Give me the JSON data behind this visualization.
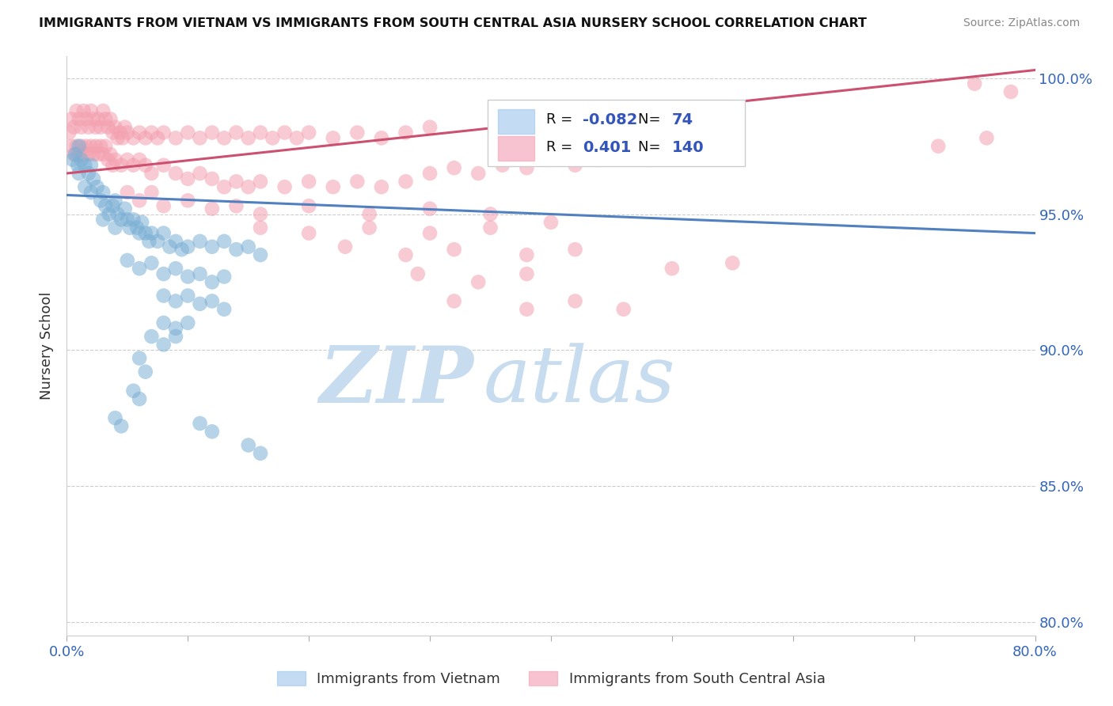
{
  "title": "IMMIGRANTS FROM VIETNAM VS IMMIGRANTS FROM SOUTH CENTRAL ASIA NURSERY SCHOOL CORRELATION CHART",
  "source": "Source: ZipAtlas.com",
  "ylabel": "Nursery School",
  "xmin": 0.0,
  "xmax": 0.8,
  "ymin": 0.795,
  "ymax": 1.008,
  "r_vietnam": -0.082,
  "n_vietnam": 74,
  "r_sca": 0.401,
  "n_sca": 140,
  "color_vietnam": "#7BAFD4",
  "color_sca": "#F4A0B0",
  "line_vietnam": "#5080C0",
  "line_sca": "#CC5070",
  "watermark_zip": "ZIP",
  "watermark_atlas": "atlas",
  "vietnam_points": [
    [
      0.005,
      0.97
    ],
    [
      0.007,
      0.972
    ],
    [
      0.009,
      0.968
    ],
    [
      0.01,
      0.975
    ],
    [
      0.01,
      0.965
    ],
    [
      0.012,
      0.97
    ],
    [
      0.015,
      0.968
    ],
    [
      0.015,
      0.96
    ],
    [
      0.018,
      0.965
    ],
    [
      0.02,
      0.968
    ],
    [
      0.02,
      0.958
    ],
    [
      0.022,
      0.963
    ],
    [
      0.025,
      0.96
    ],
    [
      0.028,
      0.955
    ],
    [
      0.03,
      0.958
    ],
    [
      0.03,
      0.948
    ],
    [
      0.032,
      0.953
    ],
    [
      0.035,
      0.95
    ],
    [
      0.038,
      0.953
    ],
    [
      0.04,
      0.955
    ],
    [
      0.04,
      0.945
    ],
    [
      0.042,
      0.95
    ],
    [
      0.045,
      0.948
    ],
    [
      0.048,
      0.952
    ],
    [
      0.05,
      0.948
    ],
    [
      0.052,
      0.945
    ],
    [
      0.055,
      0.948
    ],
    [
      0.058,
      0.945
    ],
    [
      0.06,
      0.943
    ],
    [
      0.062,
      0.947
    ],
    [
      0.065,
      0.943
    ],
    [
      0.068,
      0.94
    ],
    [
      0.07,
      0.943
    ],
    [
      0.075,
      0.94
    ],
    [
      0.08,
      0.943
    ],
    [
      0.085,
      0.938
    ],
    [
      0.09,
      0.94
    ],
    [
      0.095,
      0.937
    ],
    [
      0.1,
      0.938
    ],
    [
      0.11,
      0.94
    ],
    [
      0.12,
      0.938
    ],
    [
      0.13,
      0.94
    ],
    [
      0.14,
      0.937
    ],
    [
      0.15,
      0.938
    ],
    [
      0.16,
      0.935
    ],
    [
      0.05,
      0.933
    ],
    [
      0.06,
      0.93
    ],
    [
      0.07,
      0.932
    ],
    [
      0.08,
      0.928
    ],
    [
      0.09,
      0.93
    ],
    [
      0.1,
      0.927
    ],
    [
      0.11,
      0.928
    ],
    [
      0.12,
      0.925
    ],
    [
      0.13,
      0.927
    ],
    [
      0.08,
      0.92
    ],
    [
      0.09,
      0.918
    ],
    [
      0.1,
      0.92
    ],
    [
      0.11,
      0.917
    ],
    [
      0.12,
      0.918
    ],
    [
      0.13,
      0.915
    ],
    [
      0.08,
      0.91
    ],
    [
      0.09,
      0.908
    ],
    [
      0.1,
      0.91
    ],
    [
      0.07,
      0.905
    ],
    [
      0.08,
      0.902
    ],
    [
      0.09,
      0.905
    ],
    [
      0.06,
      0.897
    ],
    [
      0.065,
      0.892
    ],
    [
      0.055,
      0.885
    ],
    [
      0.06,
      0.882
    ],
    [
      0.04,
      0.875
    ],
    [
      0.045,
      0.872
    ],
    [
      0.11,
      0.873
    ],
    [
      0.12,
      0.87
    ],
    [
      0.15,
      0.865
    ],
    [
      0.16,
      0.862
    ]
  ],
  "sca_points": [
    [
      0.002,
      0.98
    ],
    [
      0.004,
      0.985
    ],
    [
      0.006,
      0.982
    ],
    [
      0.008,
      0.988
    ],
    [
      0.01,
      0.985
    ],
    [
      0.012,
      0.982
    ],
    [
      0.014,
      0.988
    ],
    [
      0.016,
      0.985
    ],
    [
      0.018,
      0.982
    ],
    [
      0.02,
      0.988
    ],
    [
      0.022,
      0.985
    ],
    [
      0.024,
      0.982
    ],
    [
      0.026,
      0.985
    ],
    [
      0.028,
      0.982
    ],
    [
      0.03,
      0.988
    ],
    [
      0.032,
      0.985
    ],
    [
      0.034,
      0.982
    ],
    [
      0.036,
      0.985
    ],
    [
      0.038,
      0.98
    ],
    [
      0.04,
      0.982
    ],
    [
      0.042,
      0.978
    ],
    [
      0.044,
      0.98
    ],
    [
      0.046,
      0.978
    ],
    [
      0.048,
      0.982
    ],
    [
      0.05,
      0.98
    ],
    [
      0.055,
      0.978
    ],
    [
      0.06,
      0.98
    ],
    [
      0.065,
      0.978
    ],
    [
      0.07,
      0.98
    ],
    [
      0.075,
      0.978
    ],
    [
      0.08,
      0.98
    ],
    [
      0.09,
      0.978
    ],
    [
      0.1,
      0.98
    ],
    [
      0.11,
      0.978
    ],
    [
      0.12,
      0.98
    ],
    [
      0.13,
      0.978
    ],
    [
      0.14,
      0.98
    ],
    [
      0.15,
      0.978
    ],
    [
      0.16,
      0.98
    ],
    [
      0.17,
      0.978
    ],
    [
      0.18,
      0.98
    ],
    [
      0.19,
      0.978
    ],
    [
      0.2,
      0.98
    ],
    [
      0.22,
      0.978
    ],
    [
      0.24,
      0.98
    ],
    [
      0.26,
      0.978
    ],
    [
      0.28,
      0.98
    ],
    [
      0.3,
      0.982
    ],
    [
      0.004,
      0.975
    ],
    [
      0.006,
      0.972
    ],
    [
      0.008,
      0.975
    ],
    [
      0.01,
      0.972
    ],
    [
      0.012,
      0.975
    ],
    [
      0.014,
      0.972
    ],
    [
      0.016,
      0.975
    ],
    [
      0.018,
      0.972
    ],
    [
      0.02,
      0.975
    ],
    [
      0.022,
      0.972
    ],
    [
      0.024,
      0.975
    ],
    [
      0.026,
      0.972
    ],
    [
      0.028,
      0.975
    ],
    [
      0.03,
      0.972
    ],
    [
      0.032,
      0.975
    ],
    [
      0.034,
      0.97
    ],
    [
      0.036,
      0.972
    ],
    [
      0.038,
      0.968
    ],
    [
      0.04,
      0.97
    ],
    [
      0.045,
      0.968
    ],
    [
      0.05,
      0.97
    ],
    [
      0.055,
      0.968
    ],
    [
      0.06,
      0.97
    ],
    [
      0.065,
      0.968
    ],
    [
      0.07,
      0.965
    ],
    [
      0.08,
      0.968
    ],
    [
      0.09,
      0.965
    ],
    [
      0.1,
      0.963
    ],
    [
      0.11,
      0.965
    ],
    [
      0.12,
      0.963
    ],
    [
      0.13,
      0.96
    ],
    [
      0.14,
      0.962
    ],
    [
      0.15,
      0.96
    ],
    [
      0.16,
      0.962
    ],
    [
      0.18,
      0.96
    ],
    [
      0.2,
      0.962
    ],
    [
      0.22,
      0.96
    ],
    [
      0.24,
      0.962
    ],
    [
      0.26,
      0.96
    ],
    [
      0.28,
      0.962
    ],
    [
      0.3,
      0.965
    ],
    [
      0.32,
      0.967
    ],
    [
      0.34,
      0.965
    ],
    [
      0.36,
      0.968
    ],
    [
      0.38,
      0.967
    ],
    [
      0.4,
      0.97
    ],
    [
      0.42,
      0.968
    ],
    [
      0.44,
      0.97
    ],
    [
      0.46,
      0.972
    ],
    [
      0.48,
      0.97
    ],
    [
      0.5,
      0.972
    ],
    [
      0.05,
      0.958
    ],
    [
      0.06,
      0.955
    ],
    [
      0.07,
      0.958
    ],
    [
      0.08,
      0.953
    ],
    [
      0.1,
      0.955
    ],
    [
      0.12,
      0.952
    ],
    [
      0.14,
      0.953
    ],
    [
      0.16,
      0.95
    ],
    [
      0.2,
      0.953
    ],
    [
      0.25,
      0.95
    ],
    [
      0.3,
      0.952
    ],
    [
      0.35,
      0.95
    ],
    [
      0.16,
      0.945
    ],
    [
      0.2,
      0.943
    ],
    [
      0.25,
      0.945
    ],
    [
      0.3,
      0.943
    ],
    [
      0.35,
      0.945
    ],
    [
      0.4,
      0.947
    ],
    [
      0.23,
      0.938
    ],
    [
      0.28,
      0.935
    ],
    [
      0.32,
      0.937
    ],
    [
      0.38,
      0.935
    ],
    [
      0.42,
      0.937
    ],
    [
      0.29,
      0.928
    ],
    [
      0.34,
      0.925
    ],
    [
      0.38,
      0.928
    ],
    [
      0.5,
      0.93
    ],
    [
      0.55,
      0.932
    ],
    [
      0.32,
      0.918
    ],
    [
      0.38,
      0.915
    ],
    [
      0.42,
      0.918
    ],
    [
      0.46,
      0.915
    ],
    [
      0.75,
      0.998
    ],
    [
      0.78,
      0.995
    ],
    [
      0.72,
      0.975
    ],
    [
      0.76,
      0.978
    ]
  ]
}
